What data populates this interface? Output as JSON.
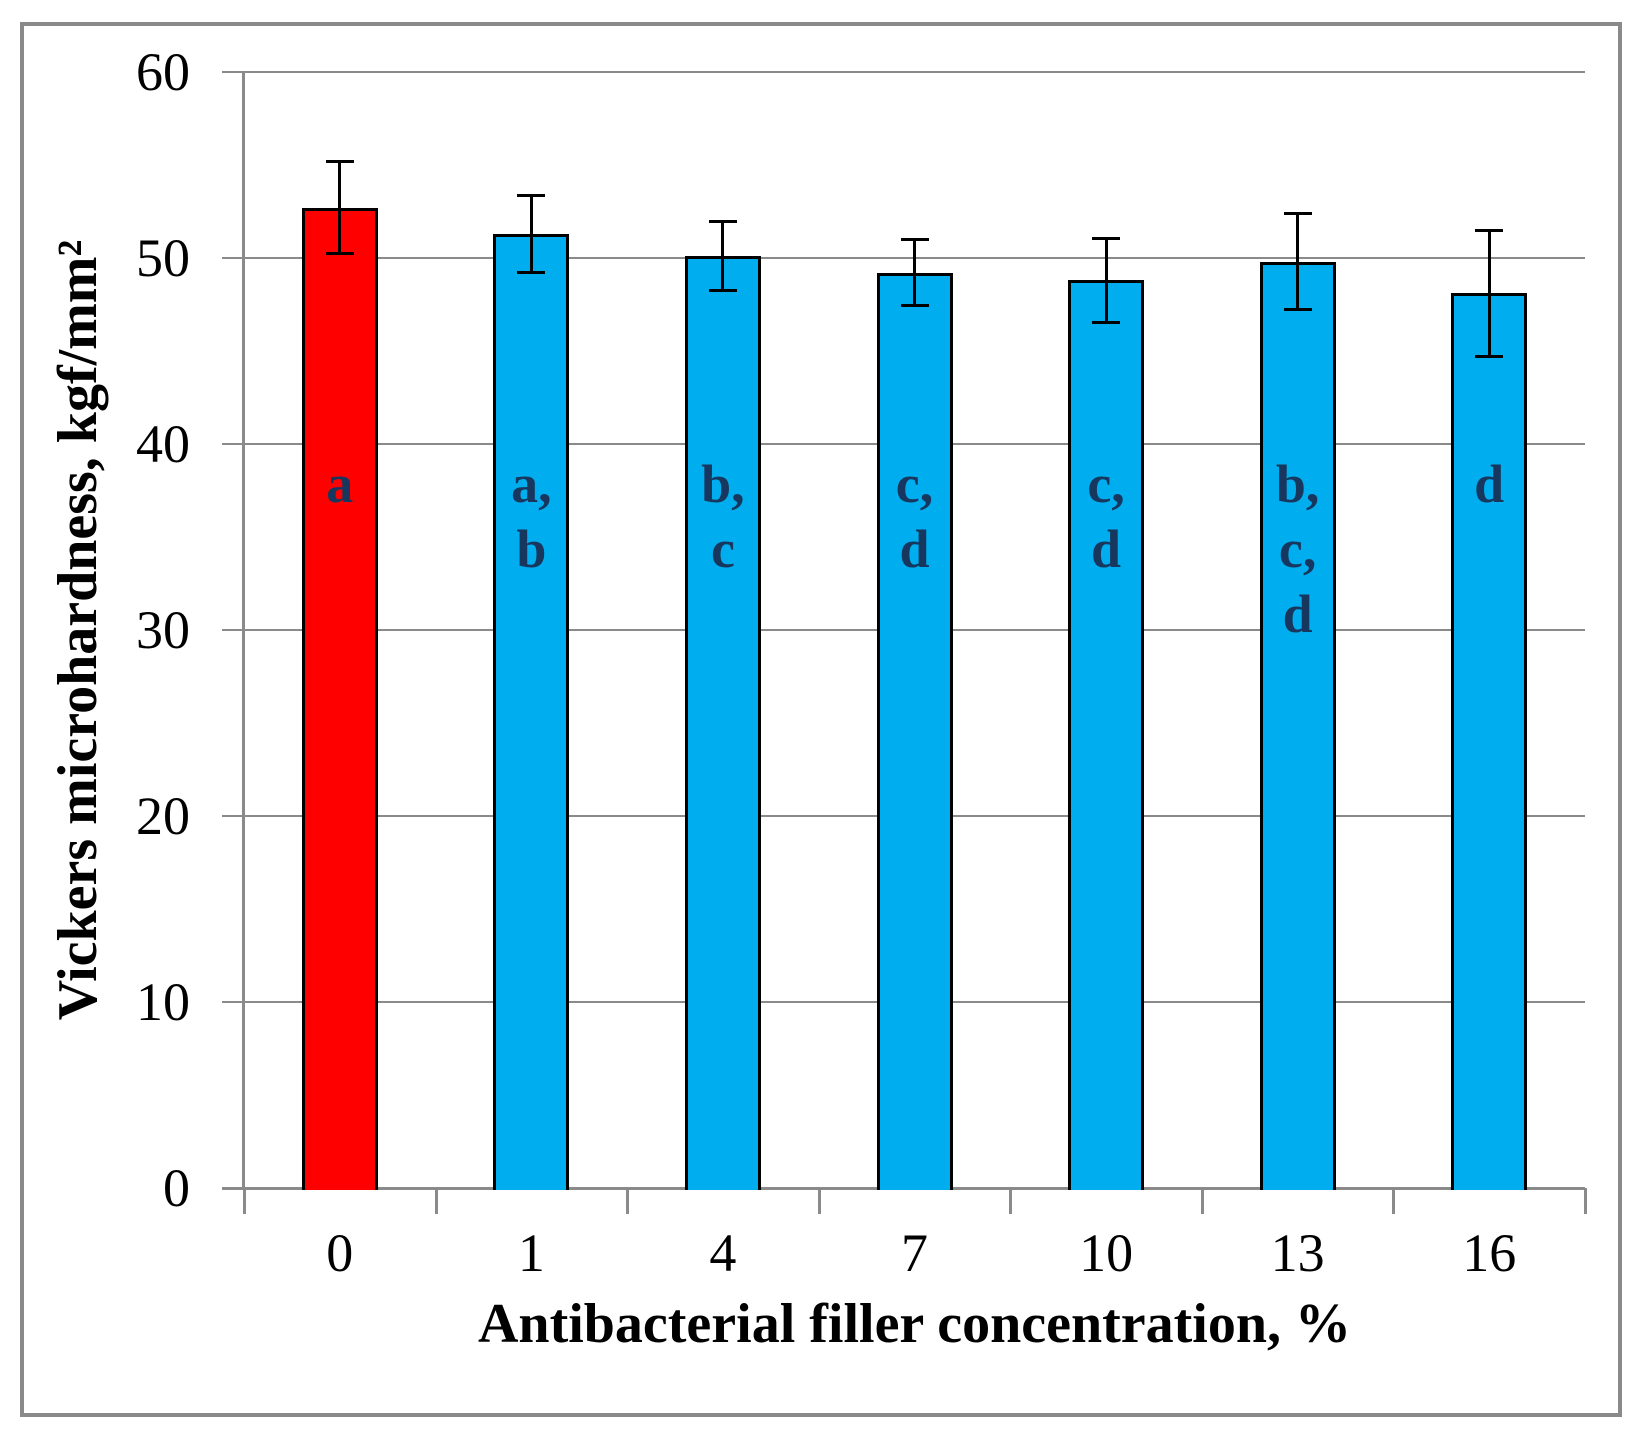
{
  "figure": {
    "background_color": "#FFFFFF",
    "frame_color": "#8A8A8A"
  },
  "chart_data": {
    "type": "bar",
    "title": "",
    "xlabel": "Antibacterial filler concentration, %",
    "ylabel": "Vickers microhardness, kgf/mm²",
    "categories": [
      "0",
      "1",
      "4",
      "7",
      "10",
      "13",
      "16"
    ],
    "values": [
      52.7,
      51.3,
      50.1,
      49.2,
      48.8,
      49.8,
      48.1
    ],
    "error_bars": [
      2.5,
      2.1,
      1.9,
      1.8,
      2.3,
      2.6,
      3.4
    ],
    "bar_colors": [
      "#FF0000",
      "#00AEEF",
      "#00AEEF",
      "#00AEEF",
      "#00AEEF",
      "#00AEEF",
      "#00AEEF"
    ],
    "significance_labels": [
      [
        "a"
      ],
      [
        "a,",
        "b"
      ],
      [
        "b,",
        "c"
      ],
      [
        "c,",
        "d"
      ],
      [
        "c,",
        "d"
      ],
      [
        "b,",
        "c,",
        "d"
      ],
      [
        "d"
      ]
    ],
    "significance_label_color": "#17375E",
    "ylim": [
      0,
      60
    ],
    "yticks": [
      0,
      10,
      20,
      30,
      40,
      50,
      60
    ],
    "grid": true,
    "gridline_color": "#8A8A8A",
    "axis_color": "#8A8A8A",
    "bar_border_color": "#000000",
    "error_bar_color": "#000000",
    "legend": "none"
  }
}
